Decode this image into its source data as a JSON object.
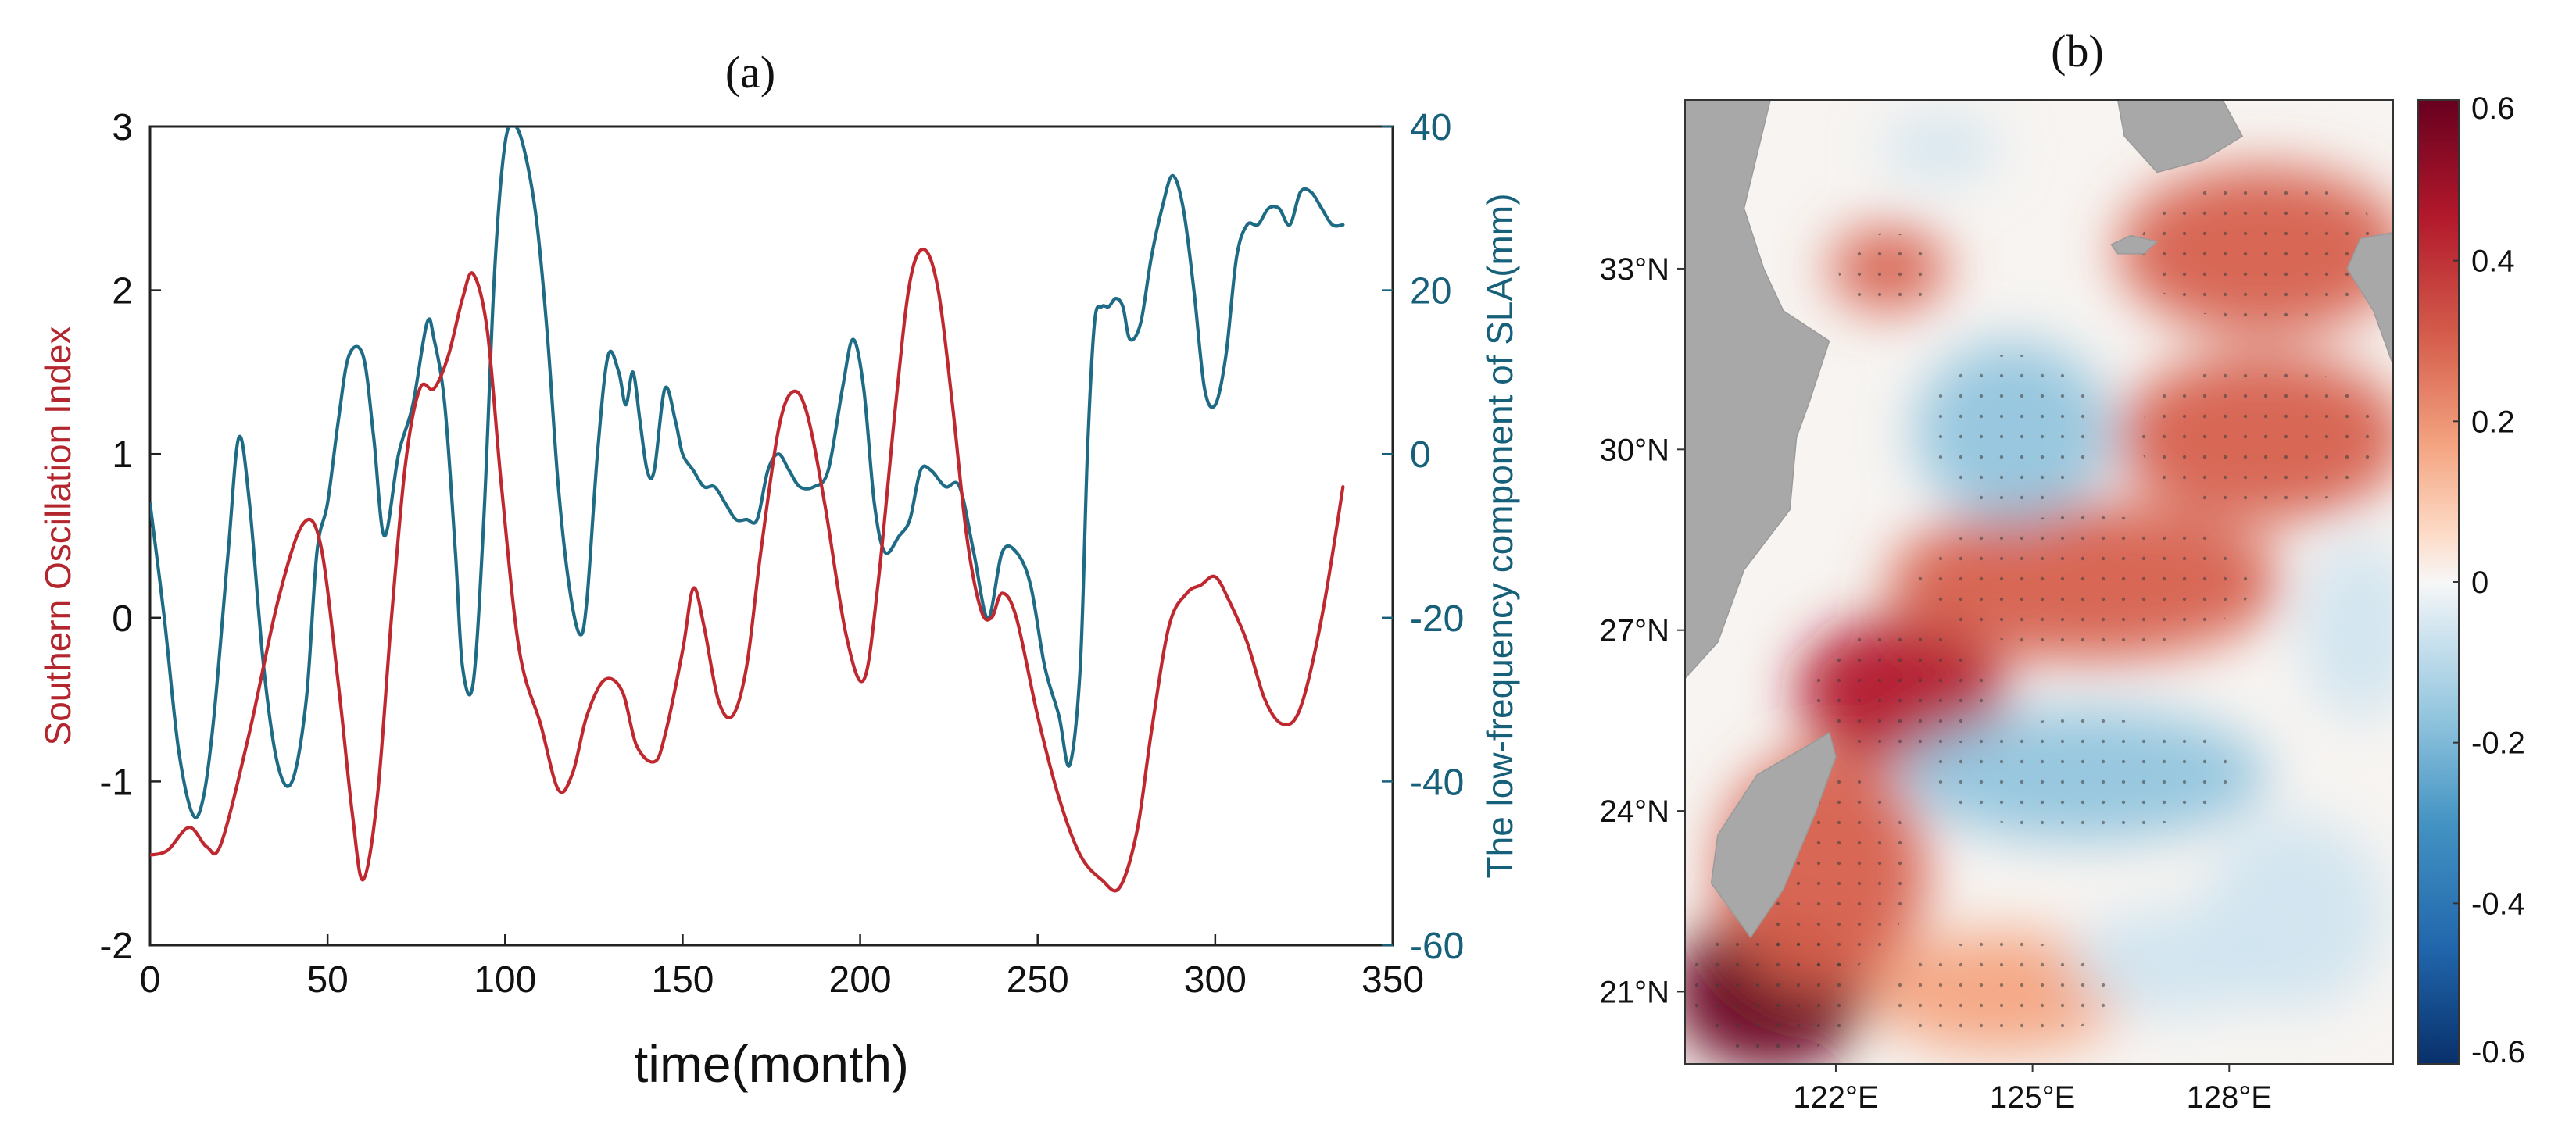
{
  "chart_data": [
    {
      "type": "line",
      "panel_label": "(a)",
      "xlabel": "time(month)",
      "ylabel_left": "Southern Oscillation Index",
      "ylabel_right": "The low-frequency component of SLA(mm)",
      "xlim": [
        0,
        350
      ],
      "ylim_left": [
        -2,
        3
      ],
      "ylim_right": [
        -60,
        40
      ],
      "x_ticks": [
        "0",
        "50",
        "100",
        "150",
        "200",
        "250",
        "300",
        "350"
      ],
      "y_ticks_left": [
        "-2",
        "-1",
        "0",
        "1",
        "2",
        "3"
      ],
      "y_ticks_right": [
        "-60",
        "-40",
        "-20",
        "0",
        "20",
        "40"
      ],
      "grid": false,
      "series": [
        {
          "name": "Southern Oscillation Index",
          "axis": "left",
          "color": "#c0282f",
          "x": [
            0,
            5,
            11,
            16,
            20,
            28,
            36,
            43,
            48,
            53,
            57,
            60,
            64,
            68,
            72,
            76,
            80,
            84,
            88,
            91,
            95,
            99,
            104,
            110,
            115,
            119,
            123,
            128,
            133,
            137,
            142,
            145,
            150,
            153,
            156,
            160,
            164,
            168,
            172,
            177,
            181,
            185,
            190,
            196,
            201,
            205,
            210,
            214,
            218,
            222,
            226,
            230,
            234,
            237,
            240,
            244,
            250,
            256,
            262,
            268,
            273,
            278,
            282,
            287,
            292,
            296,
            300,
            304,
            309,
            314,
            319,
            324,
            330,
            336
          ],
          "values": [
            -1.45,
            -1.42,
            -1.28,
            -1.4,
            -1.38,
            -0.7,
            0.1,
            0.57,
            0.45,
            -0.4,
            -1.2,
            -1.6,
            -1.1,
            0.0,
            0.95,
            1.4,
            1.4,
            1.6,
            1.95,
            2.1,
            1.75,
            0.8,
            -0.2,
            -0.65,
            -1.05,
            -0.95,
            -0.6,
            -0.38,
            -0.45,
            -0.78,
            -0.88,
            -0.72,
            -0.2,
            0.18,
            -0.05,
            -0.5,
            -0.6,
            -0.3,
            0.4,
            1.15,
            1.38,
            1.25,
            0.7,
            -0.1,
            -0.38,
            0.2,
            1.3,
            2.05,
            2.25,
            2.0,
            1.3,
            0.5,
            0.05,
            0.0,
            0.15,
            0.0,
            -0.6,
            -1.1,
            -1.45,
            -1.6,
            -1.65,
            -1.3,
            -0.7,
            -0.05,
            0.15,
            0.2,
            0.25,
            0.1,
            -0.15,
            -0.5,
            -0.65,
            -0.55,
            0.0,
            0.8
          ]
        },
        {
          "name": "The low-frequency component of SLA(mm)",
          "axis": "right",
          "color": "#1e6b86",
          "x": [
            0,
            4,
            8,
            12,
            15,
            18,
            22,
            25,
            28,
            32,
            36,
            40,
            44,
            47,
            50,
            53,
            56,
            60,
            63,
            66,
            70,
            74,
            78,
            80,
            83,
            86,
            88,
            91,
            94,
            97,
            100,
            103,
            106,
            109,
            112,
            115,
            118,
            121,
            123,
            126,
            129,
            132,
            134,
            136,
            138,
            140,
            142,
            145,
            148,
            150,
            153,
            156,
            159,
            162,
            165,
            168,
            171,
            174,
            177,
            180,
            183,
            187,
            191,
            195,
            198,
            201,
            204,
            207,
            211,
            214,
            217,
            220,
            224,
            228,
            232,
            236,
            240,
            244,
            248,
            252,
            256,
            259,
            262,
            264,
            266,
            268,
            270,
            272,
            274,
            276,
            279,
            282,
            285,
            288,
            291,
            294,
            297,
            300,
            303,
            306,
            309,
            312,
            315,
            318,
            321,
            324,
            327,
            330,
            333,
            336
          ],
          "values": [
            -6,
            -20,
            -36,
            -44,
            -42,
            -32,
            -12,
            2,
            -6,
            -26,
            -38,
            -40,
            -30,
            -12,
            -6,
            4,
            12,
            12,
            2,
            -10,
            0,
            6,
            16,
            14,
            6,
            -12,
            -26,
            -28,
            -8,
            22,
            38,
            40,
            36,
            28,
            14,
            -4,
            -16,
            -22,
            -18,
            0,
            12,
            10,
            6,
            10,
            4,
            -2,
            -2,
            8,
            4,
            0,
            -2,
            -4,
            -4,
            -6,
            -8,
            -8,
            -8,
            -2,
            0,
            -2,
            -4,
            -4,
            -2,
            8,
            14,
            8,
            -6,
            -12,
            -10,
            -8,
            -2,
            -2,
            -4,
            -4,
            -12,
            -20,
            -12,
            -12,
            -16,
            -26,
            -32,
            -38,
            -26,
            0,
            16,
            18,
            18,
            19,
            18,
            14,
            16,
            24,
            30,
            34,
            30,
            20,
            8,
            6,
            12,
            24,
            28,
            28,
            30,
            30,
            28,
            32,
            32,
            30,
            28,
            28
          ]
        }
      ]
    },
    {
      "type": "heatmap",
      "panel_label": "(b)",
      "x_ticks": [
        "122°E",
        "125°E",
        "128°E"
      ],
      "y_ticks": [
        "21°N",
        "24°N",
        "27°N",
        "30°N",
        "33°N"
      ],
      "xlim": [
        119.7,
        130.5
      ],
      "ylim": [
        19.8,
        35.8
      ],
      "colorbar": {
        "range": [
          -0.6,
          0.6
        ],
        "ticks": [
          "0.6",
          "0.4",
          "0.2",
          "0",
          "-0.2",
          "-0.4",
          "-0.6"
        ],
        "colors": [
          "#08306b",
          "#2166ac",
          "#4393c3",
          "#92c5de",
          "#d1e5f0",
          "#f7f7f7",
          "#fddbc7",
          "#f4a582",
          "#d6604d",
          "#b2182b",
          "#67001f"
        ]
      },
      "value_blobs": [
        {
          "lon": 123.0,
          "lat": 26.0,
          "rx": 1.6,
          "ry": 1.2,
          "value": 0.45
        },
        {
          "lon": 121.0,
          "lat": 21.0,
          "rx": 1.5,
          "ry": 1.3,
          "value": 0.55
        },
        {
          "lon": 125.8,
          "lat": 27.8,
          "rx": 3.0,
          "ry": 1.3,
          "value": 0.3
        },
        {
          "lon": 128.5,
          "lat": 30.2,
          "rx": 2.2,
          "ry": 1.4,
          "value": 0.35
        },
        {
          "lon": 128.5,
          "lat": 33.3,
          "rx": 2.2,
          "ry": 1.4,
          "value": 0.32
        },
        {
          "lon": 122.8,
          "lat": 33.0,
          "rx": 0.9,
          "ry": 0.7,
          "value": 0.3
        },
        {
          "lon": 121.8,
          "lat": 23.0,
          "rx": 1.6,
          "ry": 2.0,
          "value": 0.3
        },
        {
          "lon": 124.5,
          "lat": 21.0,
          "rx": 2.0,
          "ry": 1.0,
          "value": 0.22
        },
        {
          "lon": 124.7,
          "lat": 30.3,
          "rx": 1.5,
          "ry": 1.5,
          "value": -0.2
        },
        {
          "lon": 125.8,
          "lat": 24.6,
          "rx": 2.8,
          "ry": 1.1,
          "value": -0.2
        },
        {
          "lon": 129.0,
          "lat": 22.3,
          "rx": 1.4,
          "ry": 1.6,
          "value": -0.12
        },
        {
          "lon": 123.6,
          "lat": 35.0,
          "rx": 0.9,
          "ry": 0.5,
          "value": -0.12
        },
        {
          "lon": 127.2,
          "lat": 21.5,
          "rx": 1.6,
          "ry": 0.9,
          "value": -0.1
        },
        {
          "lon": 130.0,
          "lat": 27.0,
          "rx": 0.9,
          "ry": 1.5,
          "value": -0.15
        }
      ],
      "land": [
        {
          "name": "China coast",
          "polygon": [
            [
              119.7,
              35.8
            ],
            [
              121.0,
              35.8
            ],
            [
              120.6,
              34.0
            ],
            [
              120.9,
              33.0
            ],
            [
              121.2,
              32.3
            ],
            [
              121.9,
              31.8
            ],
            [
              121.6,
              30.8
            ],
            [
              121.4,
              30.2
            ],
            [
              121.3,
              29.0
            ],
            [
              120.6,
              28.0
            ],
            [
              120.2,
              26.8
            ],
            [
              119.7,
              26.2
            ]
          ]
        },
        {
          "name": "Taiwan",
          "polygon": [
            [
              121.9,
              25.3
            ],
            [
              121.6,
              25.1
            ],
            [
              120.8,
              24.6
            ],
            [
              120.2,
              23.6
            ],
            [
              120.1,
              22.8
            ],
            [
              120.7,
              21.9
            ],
            [
              121.2,
              22.7
            ],
            [
              121.7,
              24.0
            ],
            [
              122.0,
              24.9
            ]
          ]
        },
        {
          "name": "Korea",
          "polygon": [
            [
              126.3,
              35.8
            ],
            [
              126.4,
              35.2
            ],
            [
              126.9,
              34.6
            ],
            [
              127.6,
              34.8
            ],
            [
              128.2,
              35.2
            ],
            [
              127.9,
              35.8
            ]
          ]
        },
        {
          "name": "Jeju",
          "polygon": [
            [
              126.2,
              33.4
            ],
            [
              126.5,
              33.55
            ],
            [
              126.9,
              33.45
            ],
            [
              126.7,
              33.25
            ],
            [
              126.3,
              33.25
            ]
          ]
        },
        {
          "name": "Kyushu",
          "polygon": [
            [
              130.5,
              33.6
            ],
            [
              130.0,
              33.5
            ],
            [
              129.8,
              33.0
            ],
            [
              130.2,
              32.3
            ],
            [
              130.5,
              31.4
            ]
          ]
        }
      ]
    }
  ]
}
